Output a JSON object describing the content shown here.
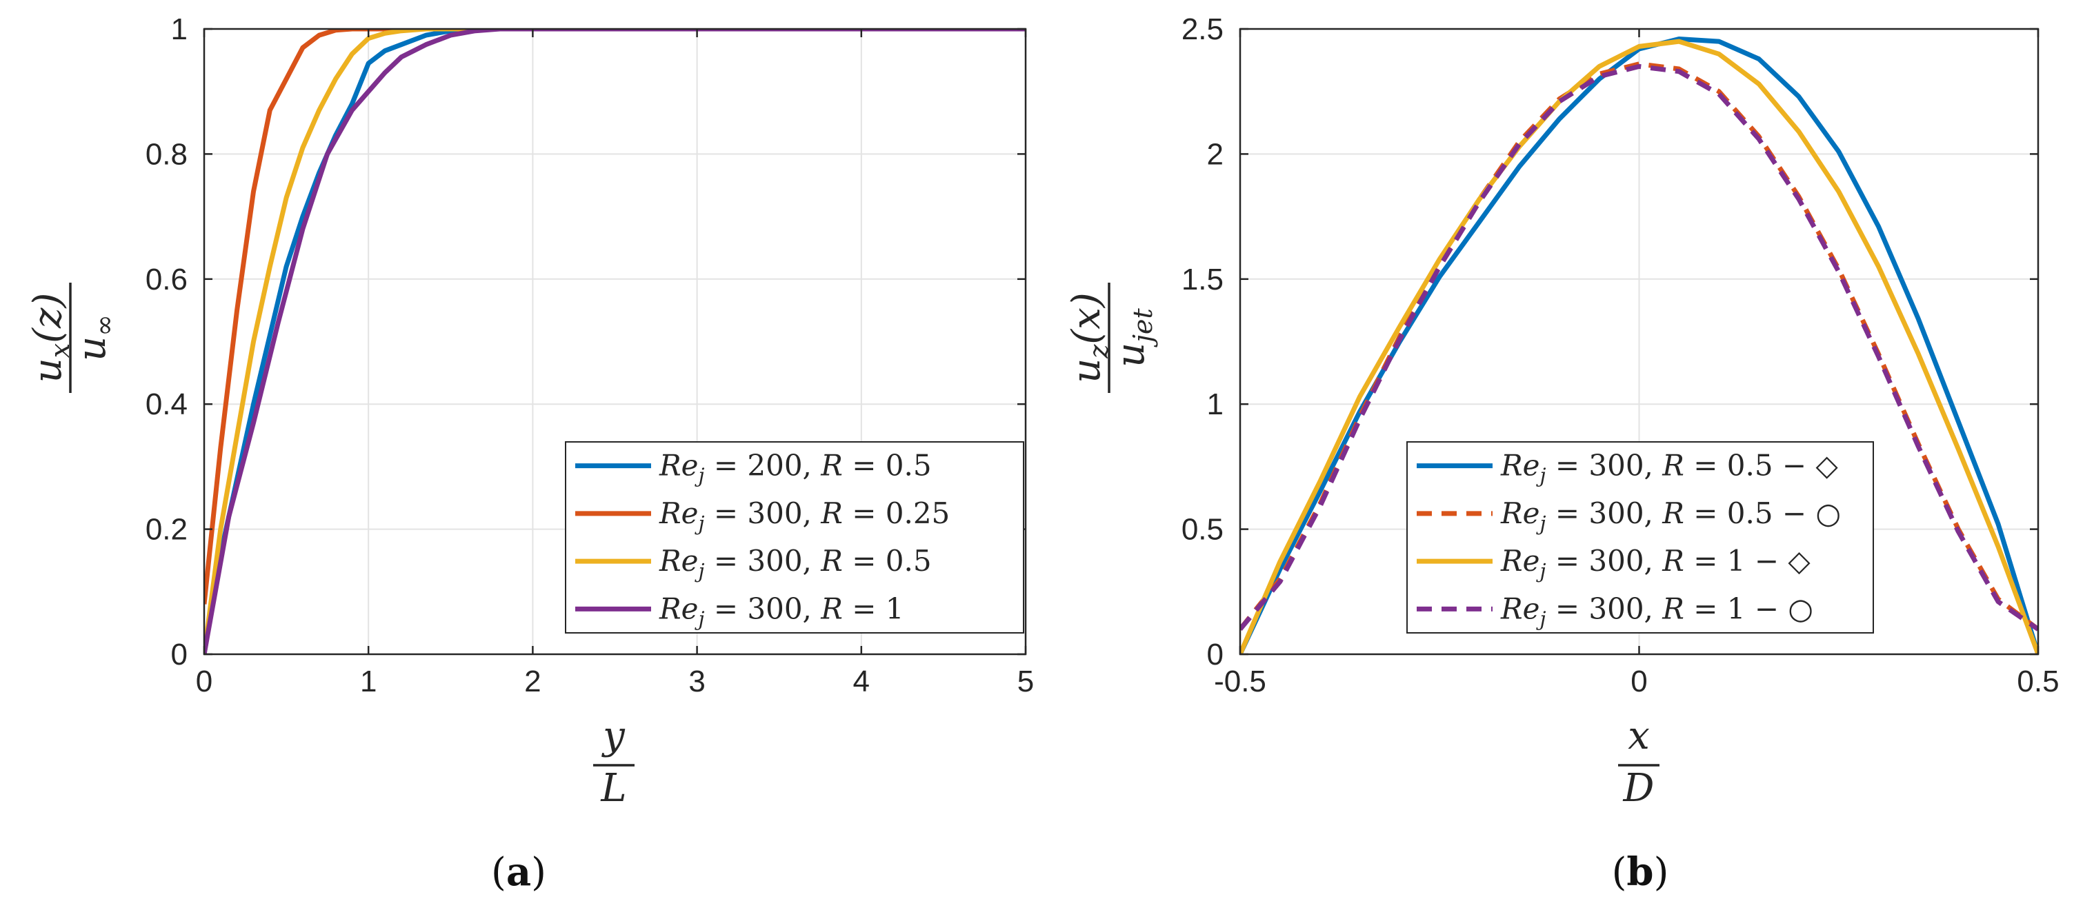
{
  "chart_data": [
    {
      "id": "a",
      "type": "line",
      "caption": "(a)",
      "xlabel": {
        "num": "y",
        "den": "L"
      },
      "ylabel": {
        "num": "u_x(z)",
        "den": "u_∞"
      },
      "xlim": [
        0,
        5
      ],
      "ylim": [
        0,
        1
      ],
      "xticks": [
        0,
        1,
        2,
        3,
        4,
        5
      ],
      "xtick_labels": [
        "0",
        "1",
        "2",
        "3",
        "4",
        "5"
      ],
      "yticks": [
        0,
        0.2,
        0.4,
        0.6,
        0.8,
        1
      ],
      "ytick_labels": [
        "0",
        "0.2",
        "0.4",
        "0.6",
        "0.8",
        "1"
      ],
      "grid": true,
      "legend_position": "bottom-right",
      "series": [
        {
          "name": "Re_j = 200, R = 0.5",
          "legend": {
            "re": "200",
            "r": "0.5",
            "suffix": ""
          },
          "color": "#0072BD",
          "dash": "solid",
          "x": [
            0,
            0.1,
            0.2,
            0.3,
            0.4,
            0.5,
            0.6,
            0.7,
            0.8,
            0.9,
            1.0,
            1.1,
            1.2,
            1.35,
            1.5,
            1.7,
            2.0,
            3.0,
            4.0,
            5.0
          ],
          "y": [
            0,
            0.16,
            0.28,
            0.4,
            0.51,
            0.62,
            0.7,
            0.77,
            0.83,
            0.88,
            0.945,
            0.965,
            0.975,
            0.99,
            0.997,
            1,
            1,
            1,
            1,
            1
          ]
        },
        {
          "name": "Re_j = 300, R = 0.25",
          "legend": {
            "re": "300",
            "r": "0.25",
            "suffix": ""
          },
          "color": "#D95319",
          "dash": "solid",
          "x": [
            0,
            0.1,
            0.2,
            0.3,
            0.4,
            0.5,
            0.6,
            0.7,
            0.8,
            0.9,
            1.0,
            1.2,
            1.5,
            2.0,
            3.0,
            4.0,
            5.0
          ],
          "y": [
            0.08,
            0.33,
            0.55,
            0.74,
            0.87,
            0.92,
            0.97,
            0.99,
            0.998,
            1,
            1,
            1,
            1,
            1,
            1,
            1,
            1
          ]
        },
        {
          "name": "Re_j = 300, R = 0.5",
          "legend": {
            "re": "300",
            "r": "0.5",
            "suffix": ""
          },
          "color": "#EDB120",
          "dash": "solid",
          "x": [
            0,
            0.1,
            0.2,
            0.3,
            0.4,
            0.5,
            0.6,
            0.7,
            0.8,
            0.9,
            1.0,
            1.1,
            1.2,
            1.35,
            1.5,
            2.0,
            3.0,
            4.0,
            5.0
          ],
          "y": [
            0,
            0.2,
            0.35,
            0.5,
            0.62,
            0.73,
            0.81,
            0.87,
            0.92,
            0.96,
            0.985,
            0.993,
            0.997,
            1,
            1,
            1,
            1,
            1,
            1
          ]
        },
        {
          "name": "Re_j = 300, R = 1",
          "legend": {
            "re": "300",
            "r": "1",
            "suffix": ""
          },
          "color": "#7E2F8E",
          "dash": "solid",
          "x": [
            0,
            0.15,
            0.3,
            0.45,
            0.6,
            0.75,
            0.9,
            1.0,
            1.1,
            1.2,
            1.35,
            1.5,
            1.65,
            1.8,
            2.0,
            3.0,
            4.0,
            5.0
          ],
          "y": [
            0,
            0.22,
            0.37,
            0.53,
            0.68,
            0.8,
            0.87,
            0.9,
            0.93,
            0.955,
            0.975,
            0.99,
            0.997,
            1,
            1,
            1,
            1,
            1
          ]
        }
      ]
    },
    {
      "id": "b",
      "type": "line",
      "caption": "(b)",
      "xlabel": {
        "num": "x",
        "den": "D"
      },
      "ylabel": {
        "num": "u_z(x)",
        "den": "u_jet"
      },
      "xlim": [
        -0.5,
        0.5
      ],
      "ylim": [
        0,
        2.5
      ],
      "xticks": [
        -0.5,
        0,
        0.5
      ],
      "xtick_labels": [
        "-0.5",
        "0",
        "0.5"
      ],
      "yticks": [
        0,
        0.5,
        1,
        1.5,
        2,
        2.5
      ],
      "ytick_labels": [
        "0",
        "0.5",
        "1",
        "1.5",
        "2",
        "2.5"
      ],
      "grid": true,
      "legend_position": "bottom-center",
      "series": [
        {
          "name": "Re_j = 300, R = 0.5 − ◇",
          "legend": {
            "re": "300",
            "r": "0.5",
            "suffix": "◇"
          },
          "color": "#0072BD",
          "dash": "solid",
          "x": [
            -0.5,
            -0.45,
            -0.4,
            -0.35,
            -0.3,
            -0.25,
            -0.2,
            -0.15,
            -0.1,
            -0.05,
            0,
            0.05,
            0.1,
            0.15,
            0.2,
            0.25,
            0.3,
            0.35,
            0.4,
            0.45,
            0.5
          ],
          "y": [
            0,
            0.34,
            0.65,
            0.97,
            1.25,
            1.51,
            1.73,
            1.95,
            2.14,
            2.3,
            2.42,
            2.46,
            2.45,
            2.38,
            2.23,
            2.01,
            1.71,
            1.34,
            0.93,
            0.52,
            0
          ]
        },
        {
          "name": "Re_j = 300, R = 0.5 − ○",
          "legend": {
            "re": "300",
            "r": "0.5",
            "suffix": "○"
          },
          "color": "#D95319",
          "dash": "dashed",
          "x": [
            -0.5,
            -0.45,
            -0.4,
            -0.35,
            -0.3,
            -0.25,
            -0.2,
            -0.15,
            -0.1,
            -0.05,
            0,
            0.05,
            0.1,
            0.15,
            0.2,
            0.25,
            0.3,
            0.35,
            0.4,
            0.45,
            0.5
          ],
          "y": [
            0.1,
            0.3,
            0.6,
            0.95,
            1.27,
            1.56,
            1.82,
            2.05,
            2.22,
            2.32,
            2.36,
            2.34,
            2.25,
            2.07,
            1.83,
            1.54,
            1.2,
            0.84,
            0.5,
            0.22,
            0.1
          ]
        },
        {
          "name": "Re_j = 300, R = 1 − ◇",
          "legend": {
            "re": "300",
            "r": "1",
            "suffix": "◇"
          },
          "color": "#EDB120",
          "dash": "solid",
          "x": [
            -0.5,
            -0.45,
            -0.4,
            -0.35,
            -0.3,
            -0.25,
            -0.2,
            -0.15,
            -0.1,
            -0.05,
            0,
            0.05,
            0.1,
            0.15,
            0.2,
            0.25,
            0.3,
            0.35,
            0.4,
            0.45,
            0.5
          ],
          "y": [
            0,
            0.37,
            0.69,
            1.03,
            1.31,
            1.58,
            1.82,
            2.03,
            2.21,
            2.35,
            2.43,
            2.45,
            2.4,
            2.28,
            2.09,
            1.85,
            1.55,
            1.2,
            0.82,
            0.43,
            0
          ]
        },
        {
          "name": "Re_j = 300, R = 1 − ○",
          "legend": {
            "re": "300",
            "r": "1",
            "suffix": "○"
          },
          "color": "#7E2F8E",
          "dash": "dashed",
          "x": [
            -0.5,
            -0.45,
            -0.4,
            -0.35,
            -0.3,
            -0.25,
            -0.2,
            -0.15,
            -0.1,
            -0.05,
            0,
            0.05,
            0.1,
            0.15,
            0.2,
            0.25,
            0.3,
            0.35,
            0.4,
            0.45,
            0.5
          ],
          "y": [
            0.1,
            0.29,
            0.59,
            0.94,
            1.26,
            1.55,
            1.81,
            2.04,
            2.21,
            2.31,
            2.35,
            2.33,
            2.24,
            2.06,
            1.82,
            1.53,
            1.19,
            0.83,
            0.49,
            0.21,
            0.1
          ]
        }
      ]
    }
  ]
}
